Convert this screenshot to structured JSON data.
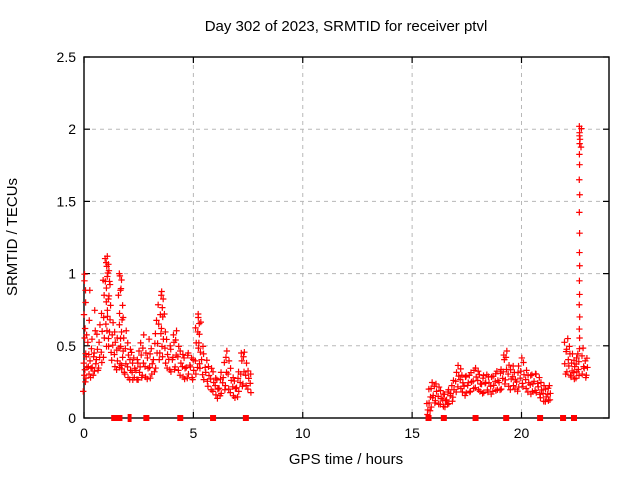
{
  "chart_data": {
    "type": "scatter",
    "title": "Day 302 of 2023, SRMTID for receiver ptvl",
    "xlabel": "GPS time / hours",
    "ylabel": "SRMTID / TECUs",
    "xlim": [
      0,
      24
    ],
    "ylim": [
      0,
      2.5
    ],
    "xticks": [
      {
        "v": 0,
        "label": "0"
      },
      {
        "v": 5,
        "label": "5"
      },
      {
        "v": 10,
        "label": "10"
      },
      {
        "v": 15,
        "label": "15"
      },
      {
        "v": 20,
        "label": "20"
      }
    ],
    "yticks": [
      {
        "v": 0,
        "label": "0"
      },
      {
        "v": 0.5,
        "label": "0.5"
      },
      {
        "v": 1,
        "label": "1"
      },
      {
        "v": 1.5,
        "label": "1.5"
      },
      {
        "v": 2,
        "label": "2"
      },
      {
        "v": 2.5,
        "label": "2.5"
      }
    ],
    "grid": true,
    "legend_position": "none",
    "marker": {
      "shape": "plus",
      "color": "#ff0000"
    },
    "zero_marker": {
      "shape": "filled-square",
      "color": "#ff0000"
    },
    "columns": [
      [
        0.0,
        [
          0.18,
          0.3,
          0.38,
          0.55,
          0.72,
          0.95
        ]
      ],
      [
        0.05,
        [
          0.25,
          0.33,
          0.45,
          0.62,
          0.88,
          1.0
        ]
      ],
      [
        0.1,
        [
          0.28,
          0.35,
          0.42,
          0.58,
          0.8
        ]
      ],
      [
        0.2,
        [
          0.3,
          0.36,
          0.44,
          0.52,
          0.68
        ]
      ],
      [
        0.3,
        [
          0.28,
          0.34,
          0.4,
          0.48,
          0.88
        ]
      ],
      [
        0.4,
        [
          0.3,
          0.35,
          0.42,
          0.55
        ]
      ],
      [
        0.5,
        [
          0.32,
          0.38,
          0.45,
          0.6,
          0.75
        ]
      ],
      [
        0.6,
        [
          0.33,
          0.4,
          0.48,
          0.58
        ]
      ],
      [
        0.7,
        [
          0.35,
          0.42,
          0.52,
          0.65
        ]
      ],
      [
        0.8,
        [
          0.38,
          0.46,
          0.6,
          0.72
        ]
      ],
      [
        0.9,
        [
          0.42,
          0.55,
          0.7,
          0.85,
          0.95
        ]
      ],
      [
        1.0,
        [
          0.5,
          0.65,
          0.8,
          0.95,
          1.05,
          1.1
        ]
      ],
      [
        1.05,
        [
          0.6,
          0.75,
          0.9,
          1.0,
          1.08,
          1.12
        ]
      ],
      [
        1.1,
        [
          0.55,
          0.7,
          0.85,
          0.98,
          1.06
        ]
      ],
      [
        1.15,
        [
          0.5,
          0.68,
          0.82,
          0.95,
          1.02
        ]
      ],
      [
        1.2,
        [
          0.45,
          0.6,
          0.78,
          0.92
        ]
      ],
      [
        1.3,
        [
          0.4,
          0.5,
          0.58,
          0.66
        ]
      ],
      [
        1.4,
        [
          0.36,
          0.44,
          0.52,
          0.6
        ]
      ],
      [
        1.5,
        [
          0.33,
          0.4,
          0.47,
          0.55
        ]
      ],
      [
        1.6,
        [
          0.35,
          0.48,
          0.65,
          0.85,
          0.98
        ]
      ],
      [
        1.65,
        [
          0.38,
          0.55,
          0.72,
          0.9,
          1.0
        ]
      ],
      [
        1.7,
        [
          0.36,
          0.5,
          0.68,
          0.88,
          0.96
        ]
      ],
      [
        1.75,
        [
          0.34,
          0.46,
          0.6,
          0.78
        ]
      ],
      [
        1.8,
        [
          0.32,
          0.42,
          0.55,
          0.7
        ]
      ],
      [
        1.9,
        [
          0.3,
          0.38,
          0.48,
          0.6
        ]
      ],
      [
        2.0,
        [
          0.28,
          0.35,
          0.44,
          0.52
        ]
      ],
      [
        2.1,
        [
          0.27,
          0.33,
          0.4,
          0.48
        ]
      ],
      [
        2.2,
        [
          0.26,
          0.32,
          0.38,
          0.45
        ]
      ],
      [
        2.3,
        [
          0.28,
          0.34,
          0.42
        ]
      ],
      [
        2.4,
        [
          0.27,
          0.33,
          0.4
        ]
      ],
      [
        2.5,
        [
          0.26,
          0.32,
          0.38,
          0.46
        ]
      ],
      [
        2.6,
        [
          0.28,
          0.35,
          0.44,
          0.52
        ]
      ],
      [
        2.7,
        [
          0.3,
          0.38,
          0.48,
          0.58
        ]
      ],
      [
        2.8,
        [
          0.28,
          0.36,
          0.45
        ]
      ],
      [
        2.9,
        [
          0.27,
          0.34,
          0.42
        ]
      ],
      [
        3.0,
        [
          0.28,
          0.35,
          0.44,
          0.55
        ]
      ],
      [
        3.1,
        [
          0.3,
          0.38,
          0.48
        ]
      ],
      [
        3.2,
        [
          0.32,
          0.4,
          0.52
        ]
      ],
      [
        3.3,
        [
          0.35,
          0.45,
          0.58,
          0.68
        ]
      ],
      [
        3.4,
        [
          0.4,
          0.52,
          0.65,
          0.78
        ]
      ],
      [
        3.5,
        [
          0.45,
          0.58,
          0.72,
          0.85
        ]
      ],
      [
        3.55,
        [
          0.5,
          0.62,
          0.76,
          0.88
        ]
      ],
      [
        3.6,
        [
          0.42,
          0.55,
          0.7,
          0.82
        ]
      ],
      [
        3.7,
        [
          0.38,
          0.48,
          0.6,
          0.72
        ]
      ],
      [
        3.8,
        [
          0.35,
          0.44,
          0.54
        ]
      ],
      [
        3.9,
        [
          0.33,
          0.41,
          0.5
        ]
      ],
      [
        4.0,
        [
          0.32,
          0.4,
          0.48
        ]
      ],
      [
        4.1,
        [
          0.34,
          0.42,
          0.52,
          0.58
        ]
      ],
      [
        4.2,
        [
          0.35,
          0.44,
          0.54,
          0.6
        ]
      ],
      [
        4.3,
        [
          0.33,
          0.42,
          0.5
        ]
      ],
      [
        4.4,
        [
          0.3,
          0.38,
          0.46
        ]
      ],
      [
        4.5,
        [
          0.28,
          0.36,
          0.44
        ]
      ],
      [
        4.6,
        [
          0.27,
          0.34,
          0.42
        ]
      ],
      [
        4.7,
        [
          0.28,
          0.35,
          0.43
        ]
      ],
      [
        4.8,
        [
          0.3,
          0.37,
          0.45
        ]
      ],
      [
        4.9,
        [
          0.28,
          0.35,
          0.42
        ]
      ],
      [
        5.0,
        [
          0.27,
          0.33,
          0.4
        ]
      ],
      [
        5.1,
        [
          0.3,
          0.4,
          0.52,
          0.62
        ]
      ],
      [
        5.2,
        [
          0.35,
          0.48,
          0.6,
          0.72
        ]
      ],
      [
        5.25,
        [
          0.38,
          0.52,
          0.65,
          0.7
        ]
      ],
      [
        5.3,
        [
          0.34,
          0.46,
          0.58,
          0.66
        ]
      ],
      [
        5.4,
        [
          0.3,
          0.4,
          0.5
        ]
      ],
      [
        5.5,
        [
          0.27,
          0.35,
          0.44
        ]
      ],
      [
        5.6,
        [
          0.25,
          0.32,
          0.4
        ]
      ],
      [
        5.7,
        [
          0.22,
          0.29,
          0.36
        ]
      ],
      [
        5.8,
        [
          0.2,
          0.27,
          0.34
        ]
      ],
      [
        5.9,
        [
          0.18,
          0.25,
          0.32
        ]
      ],
      [
        6.0,
        [
          0.16,
          0.22,
          0.28
        ]
      ],
      [
        6.1,
        [
          0.14,
          0.2,
          0.26
        ]
      ],
      [
        6.2,
        [
          0.15,
          0.21,
          0.27
        ]
      ],
      [
        6.3,
        [
          0.17,
          0.24,
          0.32
        ]
      ],
      [
        6.4,
        [
          0.2,
          0.28,
          0.38
        ]
      ],
      [
        6.5,
        [
          0.22,
          0.32,
          0.42,
          0.46
        ]
      ],
      [
        6.6,
        [
          0.2,
          0.3,
          0.4
        ]
      ],
      [
        6.7,
        [
          0.18,
          0.26,
          0.34
        ]
      ],
      [
        6.8,
        [
          0.15,
          0.22,
          0.28
        ]
      ],
      [
        6.9,
        [
          0.14,
          0.2,
          0.26
        ]
      ],
      [
        7.0,
        [
          0.15,
          0.21,
          0.27
        ]
      ],
      [
        7.1,
        [
          0.18,
          0.25,
          0.32
        ]
      ],
      [
        7.2,
        [
          0.22,
          0.3,
          0.4,
          0.45
        ]
      ],
      [
        7.3,
        [
          0.24,
          0.32,
          0.42,
          0.46
        ]
      ],
      [
        7.4,
        [
          0.22,
          0.3,
          0.38
        ]
      ],
      [
        7.5,
        [
          0.2,
          0.27,
          0.33
        ]
      ],
      [
        7.6,
        [
          0.18,
          0.24,
          0.3
        ]
      ],
      [
        15.7,
        [
          0.02,
          0.06,
          0.1
        ]
      ],
      [
        15.8,
        [
          0.05,
          0.1,
          0.15,
          0.2
        ]
      ],
      [
        15.9,
        [
          0.08,
          0.14,
          0.2,
          0.25
        ]
      ],
      [
        16.0,
        [
          0.1,
          0.16,
          0.22
        ]
      ],
      [
        16.1,
        [
          0.12,
          0.18,
          0.24
        ]
      ],
      [
        16.2,
        [
          0.1,
          0.15,
          0.21
        ]
      ],
      [
        16.3,
        [
          0.09,
          0.14,
          0.19
        ]
      ],
      [
        16.4,
        [
          0.08,
          0.12,
          0.17
        ]
      ],
      [
        16.5,
        [
          0.08,
          0.12,
          0.16
        ]
      ],
      [
        16.6,
        [
          0.09,
          0.13,
          0.18
        ]
      ],
      [
        16.7,
        [
          0.1,
          0.15,
          0.2
        ]
      ],
      [
        16.8,
        [
          0.12,
          0.17,
          0.22
        ]
      ],
      [
        16.9,
        [
          0.14,
          0.2,
          0.26
        ]
      ],
      [
        17.0,
        [
          0.18,
          0.25,
          0.32
        ]
      ],
      [
        17.1,
        [
          0.22,
          0.29,
          0.36
        ]
      ],
      [
        17.2,
        [
          0.2,
          0.27,
          0.34
        ]
      ],
      [
        17.3,
        [
          0.18,
          0.24,
          0.3
        ]
      ],
      [
        17.4,
        [
          0.16,
          0.22,
          0.28
        ]
      ],
      [
        17.5,
        [
          0.17,
          0.23,
          0.29
        ]
      ],
      [
        17.6,
        [
          0.18,
          0.24,
          0.3
        ]
      ],
      [
        17.7,
        [
          0.19,
          0.25,
          0.31
        ]
      ],
      [
        17.8,
        [
          0.2,
          0.26,
          0.33
        ]
      ],
      [
        17.9,
        [
          0.21,
          0.28,
          0.35
        ]
      ],
      [
        18.0,
        [
          0.2,
          0.26,
          0.32
        ]
      ],
      [
        18.1,
        [
          0.18,
          0.24,
          0.3
        ]
      ],
      [
        18.2,
        [
          0.17,
          0.23,
          0.28
        ]
      ],
      [
        18.3,
        [
          0.18,
          0.24,
          0.29
        ]
      ],
      [
        18.4,
        [
          0.19,
          0.25,
          0.3
        ]
      ],
      [
        18.5,
        [
          0.18,
          0.24,
          0.29
        ]
      ],
      [
        18.6,
        [
          0.17,
          0.22,
          0.28
        ]
      ],
      [
        18.7,
        [
          0.18,
          0.23,
          0.29
        ]
      ],
      [
        18.8,
        [
          0.19,
          0.25,
          0.31
        ]
      ],
      [
        18.9,
        [
          0.2,
          0.26,
          0.32
        ]
      ],
      [
        19.0,
        [
          0.19,
          0.25,
          0.31
        ]
      ],
      [
        19.1,
        [
          0.2,
          0.27,
          0.34
        ]
      ],
      [
        19.2,
        [
          0.24,
          0.32,
          0.4,
          0.44
        ]
      ],
      [
        19.3,
        [
          0.26,
          0.34,
          0.42,
          0.46
        ]
      ],
      [
        19.4,
        [
          0.22,
          0.3,
          0.37
        ]
      ],
      [
        19.5,
        [
          0.2,
          0.27,
          0.33
        ]
      ],
      [
        19.6,
        [
          0.22,
          0.29,
          0.36
        ]
      ],
      [
        19.7,
        [
          0.2,
          0.26,
          0.32
        ]
      ],
      [
        19.8,
        [
          0.19,
          0.25,
          0.31
        ]
      ],
      [
        19.9,
        [
          0.21,
          0.28,
          0.36
        ]
      ],
      [
        20.0,
        [
          0.24,
          0.32,
          0.42
        ]
      ],
      [
        20.1,
        [
          0.22,
          0.3,
          0.38
        ]
      ],
      [
        20.2,
        [
          0.2,
          0.27,
          0.33
        ]
      ],
      [
        20.3,
        [
          0.18,
          0.24,
          0.3
        ]
      ],
      [
        20.4,
        [
          0.17,
          0.23,
          0.29
        ]
      ],
      [
        20.5,
        [
          0.18,
          0.24,
          0.3
        ]
      ],
      [
        20.6,
        [
          0.19,
          0.25,
          0.31
        ]
      ],
      [
        20.7,
        [
          0.18,
          0.24,
          0.3
        ]
      ],
      [
        20.8,
        [
          0.16,
          0.22,
          0.28
        ]
      ],
      [
        20.9,
        [
          0.14,
          0.19,
          0.25
        ]
      ],
      [
        21.0,
        [
          0.12,
          0.17,
          0.22
        ]
      ],
      [
        21.1,
        [
          0.11,
          0.15,
          0.2
        ]
      ],
      [
        21.2,
        [
          0.12,
          0.16,
          0.21
        ]
      ],
      [
        21.3,
        [
          0.13,
          0.17,
          0.22
        ]
      ],
      [
        22.0,
        [
          0.3,
          0.38,
          0.46,
          0.52
        ]
      ],
      [
        22.1,
        [
          0.32,
          0.4,
          0.48,
          0.55
        ]
      ],
      [
        22.2,
        [
          0.3,
          0.36,
          0.44,
          0.5
        ]
      ],
      [
        22.3,
        [
          0.28,
          0.33,
          0.38,
          0.44
        ]
      ],
      [
        22.4,
        [
          0.27,
          0.31,
          0.36,
          0.4
        ]
      ],
      [
        22.5,
        [
          0.28,
          0.32,
          0.37,
          0.42
        ]
      ],
      [
        22.6,
        [
          0.29,
          0.34,
          0.39,
          0.44
        ]
      ],
      [
        22.65,
        [
          0.48,
          0.55,
          0.62,
          0.7,
          0.78,
          0.86,
          0.95,
          1.05,
          1.15,
          1.28,
          1.42,
          1.55,
          1.65,
          1.75,
          1.83,
          1.9,
          1.95,
          1.98,
          2.02
        ]
      ],
      [
        22.7,
        [
          1.88,
          1.93,
          2.0
        ]
      ],
      [
        22.8,
        [
          0.3,
          0.36,
          0.43,
          0.48
        ]
      ],
      [
        22.9,
        [
          0.28,
          0.34,
          0.4
        ]
      ],
      [
        23.0,
        [
          0.3,
          0.35,
          0.41
        ]
      ]
    ],
    "zero_flags_x": [
      1.38,
      1.5,
      1.62,
      2.85,
      4.4,
      5.9,
      7.4,
      15.75,
      16.45,
      17.9,
      19.3,
      20.85,
      21.9,
      22.4
    ],
    "zero_flags_thin_x": [
      2.05,
      2.12
    ]
  },
  "colors": {
    "background": "#ffffff",
    "border": "#000000",
    "grid": "#b8b8b8",
    "data": "#ff0000",
    "text": "#000000"
  }
}
